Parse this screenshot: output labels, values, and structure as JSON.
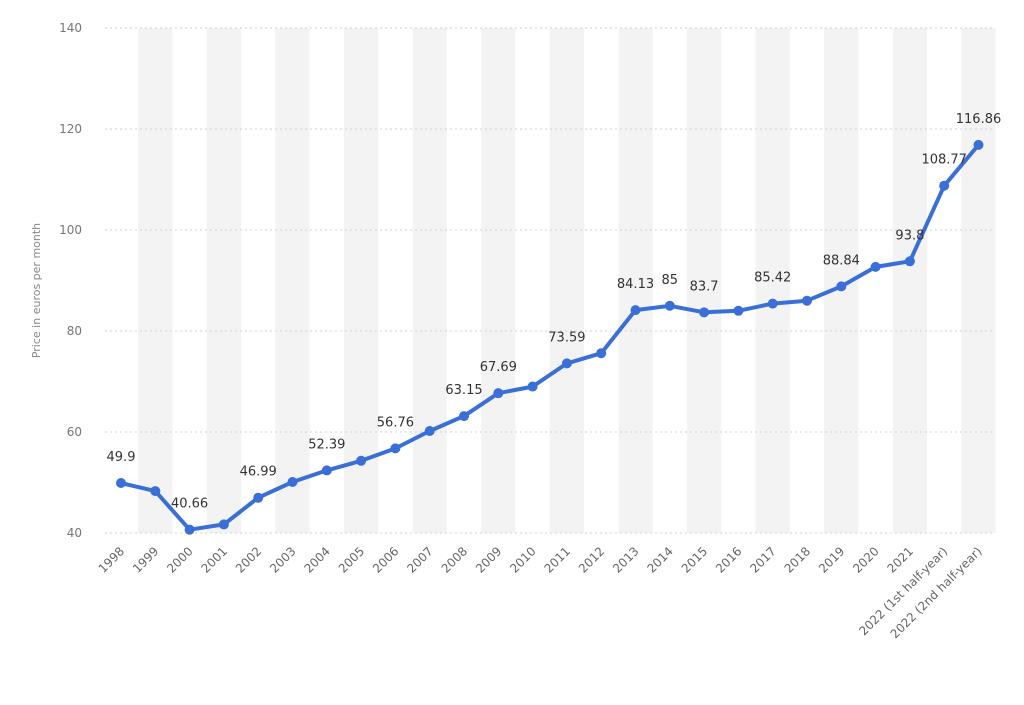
{
  "chart_data": {
    "type": "line",
    "title": "",
    "xlabel": "",
    "ylabel": "Price in euros per month",
    "ylim": [
      40,
      140
    ],
    "yticks": [
      40,
      60,
      80,
      100,
      120,
      140
    ],
    "grid": true,
    "line_color": "#3a6fd8",
    "band_color": "#f3f3f3",
    "categories": [
      "1998",
      "1999",
      "2000",
      "2001",
      "2002",
      "2003",
      "2004",
      "2005",
      "2006",
      "2007",
      "2008",
      "2009",
      "2010",
      "2011",
      "2012",
      "2013",
      "2014",
      "2015",
      "2016",
      "2017",
      "2018",
      "2019",
      "2020",
      "2021",
      "2022 (1st half-year)",
      "2022 (2nd half-year)"
    ],
    "values": [
      49.9,
      48.3,
      40.66,
      41.7,
      46.99,
      50.1,
      52.39,
      54.3,
      56.76,
      60.2,
      63.15,
      67.69,
      69.0,
      73.59,
      75.6,
      84.13,
      85,
      83.7,
      84.0,
      85.42,
      86.0,
      88.84,
      92.7,
      93.8,
      108.77,
      116.86
    ],
    "data_labels": [
      "49.9",
      "",
      "40.66",
      "",
      "46.99",
      "",
      "52.39",
      "",
      "56.76",
      "",
      "63.15",
      "67.69",
      "",
      "73.59",
      "",
      "84.13",
      "85",
      "83.7",
      "",
      "85.42",
      "",
      "88.84",
      "",
      "93.8",
      "108.77",
      "116.86"
    ]
  }
}
